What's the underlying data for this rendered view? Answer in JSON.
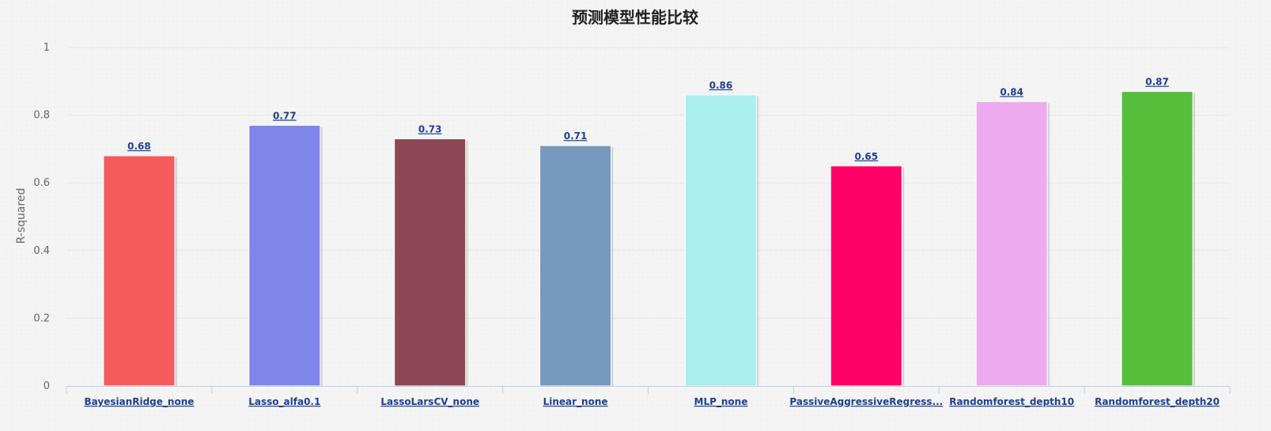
{
  "chart_data": {
    "type": "bar",
    "title": "预测模型性能比较",
    "xlabel": "",
    "ylabel": "R-squared",
    "ylim": [
      0,
      1
    ],
    "yticks": [
      "0",
      "0.2",
      "0.4",
      "0.6",
      "0.8",
      "1"
    ],
    "grid": true,
    "legend": "none",
    "categories": [
      "BayesianRidge_none",
      "Lasso_alfa0.1",
      "LassoLarsCV_none",
      "Linear_none",
      "MLP_none",
      "PassiveAggressiveRegress...",
      "Randomforest_depth10",
      "Randomforest_depth20"
    ],
    "values": [
      0.68,
      0.77,
      0.73,
      0.71,
      0.86,
      0.65,
      0.84,
      0.87
    ],
    "value_labels": [
      "0.68",
      "0.77",
      "0.73",
      "0.71",
      "0.86",
      "0.65",
      "0.84",
      "0.87"
    ],
    "colors": [
      "#f45b5b",
      "#8085e9",
      "#8d4654",
      "#7798bf",
      "#aaeeee",
      "#ff0066",
      "#eeaaee",
      "#55bf3b"
    ],
    "axis_color": "#c0d0e0",
    "grid_color": "#e6e6e6",
    "label_color": "#1f3f8f"
  }
}
